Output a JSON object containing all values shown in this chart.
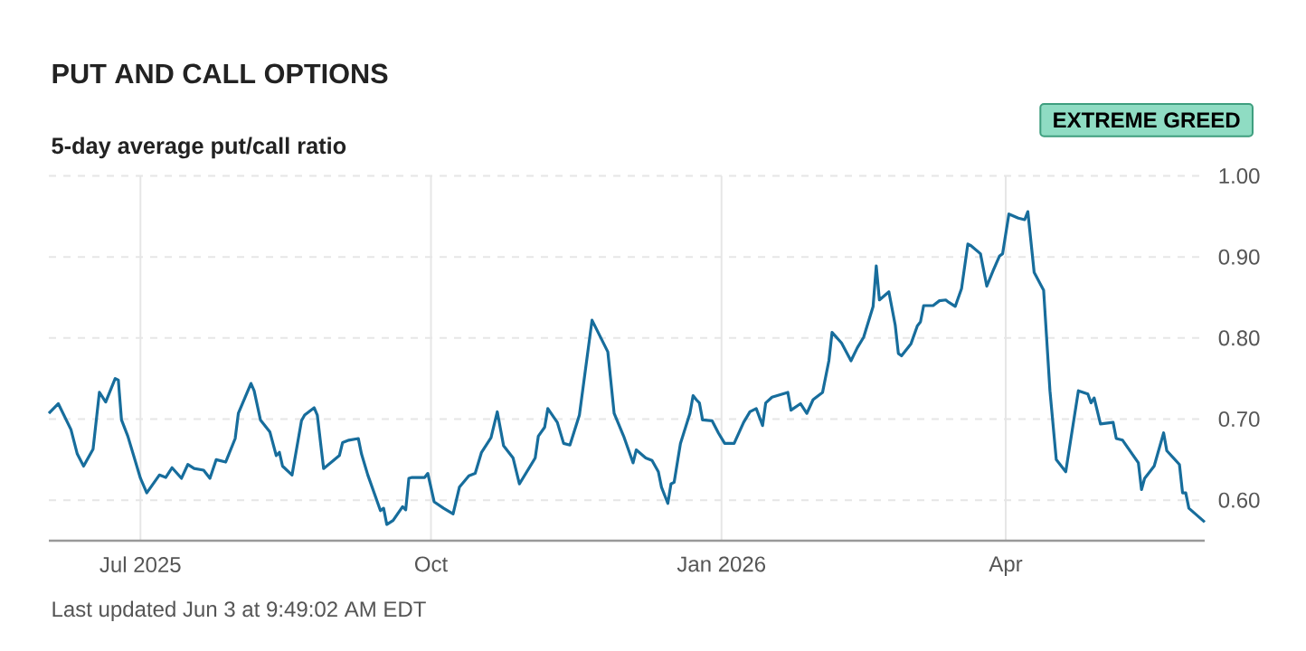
{
  "chart_data": {
    "type": "line",
    "title": "PUT AND CALL OPTIONS",
    "subtitle": "5-day average put/call ratio",
    "annotations": [
      "EXTREME GREED",
      "Last updated Jun 3 at 9:49:02 AM EDT"
    ],
    "xlim": [
      "2025-06-02",
      "2026-06-03"
    ],
    "xticks": [
      {
        "value": "2025-07-01",
        "label": "Jul 2025"
      },
      {
        "value": "2025-10-01",
        "label": "Oct"
      },
      {
        "value": "2026-01-01",
        "label": "Jan 2026"
      },
      {
        "value": "2026-04-01",
        "label": "Apr"
      }
    ],
    "ylim": [
      0.55,
      1.0
    ],
    "yticks": [
      {
        "value": 0.6,
        "label": "0.60"
      },
      {
        "value": 0.7,
        "label": "0.70"
      },
      {
        "value": 0.8,
        "label": "0.80"
      },
      {
        "value": 0.9,
        "label": "0.90"
      },
      {
        "value": 1.0,
        "label": "1.00"
      }
    ],
    "grid": true,
    "series": [
      {
        "color": "#176d9c",
        "x": [
          "2025-06-02",
          "2025-06-05",
          "2025-06-09",
          "2025-06-11",
          "2025-06-13",
          "2025-06-16",
          "2025-06-18",
          "2025-06-20",
          "2025-06-23",
          "2025-06-24",
          "2025-06-25",
          "2025-06-27",
          "2025-07-01",
          "2025-07-03",
          "2025-07-07",
          "2025-07-09",
          "2025-07-11",
          "2025-07-14",
          "2025-07-16",
          "2025-07-18",
          "2025-07-21",
          "2025-07-23",
          "2025-07-25",
          "2025-07-28",
          "2025-07-31",
          "2025-08-01",
          "2025-08-05",
          "2025-08-06",
          "2025-08-08",
          "2025-08-11",
          "2025-08-13",
          "2025-08-14",
          "2025-08-15",
          "2025-08-18",
          "2025-08-21",
          "2025-08-22",
          "2025-08-25",
          "2025-08-26",
          "2025-08-28",
          "2025-09-02",
          "2025-09-03",
          "2025-09-05",
          "2025-09-08",
          "2025-09-09",
          "2025-09-11",
          "2025-09-15",
          "2025-09-16",
          "2025-09-17",
          "2025-09-19",
          "2025-09-22",
          "2025-09-23",
          "2025-09-24",
          "2025-09-25",
          "2025-09-29",
          "2025-09-30",
          "2025-10-02",
          "2025-10-05",
          "2025-10-08",
          "2025-10-10",
          "2025-10-13",
          "2025-10-15",
          "2025-10-17",
          "2025-10-20",
          "2025-10-22",
          "2025-10-24",
          "2025-10-27",
          "2025-10-29",
          "2025-11-03",
          "2025-11-04",
          "2025-11-06",
          "2025-11-07",
          "2025-11-10",
          "2025-11-12",
          "2025-11-14",
          "2025-11-17",
          "2025-11-21",
          "2025-11-26",
          "2025-11-28",
          "2025-12-01",
          "2025-12-04",
          "2025-12-05",
          "2025-12-08",
          "2025-12-10",
          "2025-12-12",
          "2025-12-13",
          "2025-12-15",
          "2025-12-16",
          "2025-12-17",
          "2025-12-19",
          "2025-12-22",
          "2025-12-23",
          "2025-12-24",
          "2025-12-25",
          "2025-12-26",
          "2025-12-29",
          "2025-12-31",
          "2026-01-02",
          "2026-01-05",
          "2026-01-08",
          "2026-01-10",
          "2026-01-12",
          "2026-01-14",
          "2026-01-15",
          "2026-01-17",
          "2026-01-22",
          "2026-01-23",
          "2026-01-26",
          "2026-01-28",
          "2026-01-30",
          "2026-02-02",
          "2026-02-04",
          "2026-02-05",
          "2026-02-08",
          "2026-02-11",
          "2026-02-13",
          "2026-02-15",
          "2026-02-18",
          "2026-02-19",
          "2026-02-20",
          "2026-02-23",
          "2026-02-25",
          "2026-02-26",
          "2026-02-27",
          "2026-03-02",
          "2026-03-04",
          "2026-03-05",
          "2026-03-06",
          "2026-03-09",
          "2026-03-11",
          "2026-03-13",
          "2026-03-14",
          "2026-03-16",
          "2026-03-18",
          "2026-03-20",
          "2026-03-21",
          "2026-03-24",
          "2026-03-26",
          "2026-03-28",
          "2026-03-30",
          "2026-03-31",
          "2026-04-02",
          "2026-04-05",
          "2026-04-07",
          "2026-04-08",
          "2026-04-10",
          "2026-04-13",
          "2026-04-15",
          "2026-04-17",
          "2026-04-20",
          "2026-04-24",
          "2026-04-27",
          "2026-04-28",
          "2026-04-29",
          "2026-05-01",
          "2026-05-05",
          "2026-05-06",
          "2026-05-08",
          "2026-05-13",
          "2026-05-14",
          "2026-05-15",
          "2026-05-18",
          "2026-05-21",
          "2026-05-22",
          "2026-05-26",
          "2026-05-27",
          "2026-05-28",
          "2026-05-29",
          "2026-06-03"
        ],
        "values": [
          0.707,
          0.719,
          0.687,
          0.657,
          0.642,
          0.663,
          0.733,
          0.721,
          0.75,
          0.748,
          0.699,
          0.679,
          0.627,
          0.609,
          0.631,
          0.628,
          0.64,
          0.627,
          0.644,
          0.639,
          0.637,
          0.627,
          0.65,
          0.647,
          0.676,
          0.707,
          0.744,
          0.735,
          0.699,
          0.684,
          0.655,
          0.659,
          0.642,
          0.631,
          0.698,
          0.705,
          0.714,
          0.705,
          0.639,
          0.655,
          0.671,
          0.674,
          0.676,
          0.657,
          0.631,
          0.587,
          0.59,
          0.57,
          0.575,
          0.592,
          0.588,
          0.627,
          0.628,
          0.628,
          0.633,
          0.598,
          0.59,
          0.583,
          0.616,
          0.63,
          0.633,
          0.659,
          0.677,
          0.709,
          0.667,
          0.652,
          0.62,
          0.652,
          0.679,
          0.69,
          0.713,
          0.696,
          0.67,
          0.668,
          0.705,
          0.822,
          0.783,
          0.707,
          0.679,
          0.646,
          0.662,
          0.652,
          0.649,
          0.635,
          0.616,
          0.596,
          0.62,
          0.622,
          0.67,
          0.707,
          0.729,
          0.724,
          0.72,
          0.699,
          0.698,
          0.683,
          0.67,
          0.67,
          0.696,
          0.709,
          0.713,
          0.692,
          0.72,
          0.727,
          0.733,
          0.711,
          0.719,
          0.707,
          0.724,
          0.733,
          0.772,
          0.807,
          0.794,
          0.772,
          0.788,
          0.801,
          0.839,
          0.889,
          0.847,
          0.857,
          0.816,
          0.781,
          0.778,
          0.793,
          0.815,
          0.82,
          0.84,
          0.84,
          0.846,
          0.847,
          0.844,
          0.839,
          0.861,
          0.916,
          0.914,
          0.904,
          0.864,
          0.883,
          0.901,
          0.904,
          0.953,
          0.948,
          0.946,
          0.956,
          0.881,
          0.859,
          0.735,
          0.65,
          0.635,
          0.735,
          0.731,
          0.72,
          0.726,
          0.694,
          0.696,
          0.676,
          0.674,
          0.646,
          0.613,
          0.627,
          0.642,
          0.683,
          0.661,
          0.644,
          0.609,
          0.609,
          0.59,
          0.573
        ]
      }
    ]
  }
}
